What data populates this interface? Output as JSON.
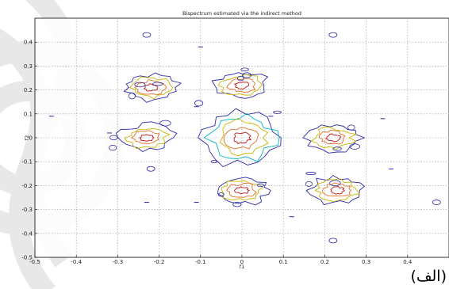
{
  "caption": "(الف)",
  "chart_data": {
    "type": "contour",
    "title": "Bispectrum estimated via the indirect method",
    "xlabel": "f1",
    "ylabel": "f2",
    "xlim": [
      -0.5,
      0.5
    ],
    "ylim": [
      -0.5,
      0.5
    ],
    "grid": true,
    "xticks": [
      "-0.5",
      "-0.4",
      "-0.3",
      "-0.2",
      "-0.1",
      "0",
      "0.1",
      "0.2",
      "0.3",
      "0.4"
    ],
    "yticks": [
      "0.4",
      "0.3",
      "0.2",
      "0.1",
      "0",
      "-0.1",
      "-0.2",
      "-0.3",
      "-0.4",
      "-0.5"
    ],
    "contour_colors": [
      "#2b2ba6",
      "#00b4c8",
      "#c8b400",
      "#e0702a",
      "#c01818"
    ],
    "peaks": [
      {
        "f1": 0.0,
        "f2": 0.0,
        "levels": 5
      },
      {
        "f1": -0.22,
        "f2": 0.21,
        "levels": 4
      },
      {
        "f1": 0.0,
        "f2": 0.22,
        "levels": 4
      },
      {
        "f1": -0.23,
        "f2": 0.0,
        "levels": 4
      },
      {
        "f1": 0.22,
        "f2": 0.0,
        "levels": 4
      },
      {
        "f1": 0.0,
        "f2": -0.22,
        "levels": 4
      },
      {
        "f1": 0.23,
        "f2": -0.22,
        "levels": 4
      }
    ]
  }
}
